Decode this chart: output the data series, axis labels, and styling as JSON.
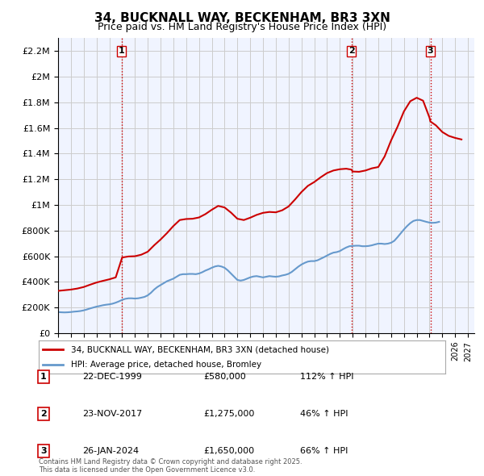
{
  "title": "34, BUCKNALL WAY, BECKENHAM, BR3 3XN",
  "subtitle": "Price paid vs. HM Land Registry's House Price Index (HPI)",
  "background_color": "#ffffff",
  "grid_color": "#cccccc",
  "plot_bg_color": "#f0f4ff",
  "ylim": [
    0,
    2300000
  ],
  "yticks": [
    0,
    200000,
    400000,
    600000,
    800000,
    1000000,
    1200000,
    1400000,
    1600000,
    1800000,
    2000000,
    2200000
  ],
  "ytick_labels": [
    "£0",
    "£200K",
    "£400K",
    "£600K",
    "£800K",
    "£1M",
    "£1.2M",
    "£1.4M",
    "£1.6M",
    "£1.8M",
    "£2M",
    "£2.2M"
  ],
  "xlim_start": 1995.0,
  "xlim_end": 2027.5,
  "sale_line_color": "#cc0000",
  "hpi_line_color": "#6699cc",
  "sale_marker_color": "#cc0000",
  "vline_color": "#cc0000",
  "vline_style": ":",
  "transactions": [
    {
      "date_num": 1999.97,
      "price": 580000,
      "label": "1"
    },
    {
      "date_num": 2017.9,
      "price": 1275000,
      "label": "2"
    },
    {
      "date_num": 2024.07,
      "price": 1650000,
      "label": "3"
    }
  ],
  "legend_sale_label": "34, BUCKNALL WAY, BECKENHAM, BR3 3XN (detached house)",
  "legend_hpi_label": "HPI: Average price, detached house, Bromley",
  "table_rows": [
    {
      "num": "1",
      "date": "22-DEC-1999",
      "price": "£580,000",
      "pct": "112% ↑ HPI"
    },
    {
      "num": "2",
      "date": "23-NOV-2017",
      "price": "£1,275,000",
      "pct": "46% ↑ HPI"
    },
    {
      "num": "3",
      "date": "26-JAN-2024",
      "price": "£1,650,000",
      "pct": "66% ↑ HPI"
    }
  ],
  "footer": "Contains HM Land Registry data © Crown copyright and database right 2025.\nThis data is licensed under the Open Government Licence v3.0.",
  "hpi_data": {
    "years": [
      1995,
      1995.25,
      1995.5,
      1995.75,
      1996,
      1996.25,
      1996.5,
      1996.75,
      1997,
      1997.25,
      1997.5,
      1997.75,
      1998,
      1998.25,
      1998.5,
      1998.75,
      1999,
      1999.25,
      1999.5,
      1999.75,
      2000,
      2000.25,
      2000.5,
      2000.75,
      2001,
      2001.25,
      2001.5,
      2001.75,
      2002,
      2002.25,
      2002.5,
      2002.75,
      2003,
      2003.25,
      2003.5,
      2003.75,
      2004,
      2004.25,
      2004.5,
      2004.75,
      2005,
      2005.25,
      2005.5,
      2005.75,
      2006,
      2006.25,
      2006.5,
      2006.75,
      2007,
      2007.25,
      2007.5,
      2007.75,
      2008,
      2008.25,
      2008.5,
      2008.75,
      2009,
      2009.25,
      2009.5,
      2009.75,
      2010,
      2010.25,
      2010.5,
      2010.75,
      2011,
      2011.25,
      2011.5,
      2011.75,
      2012,
      2012.25,
      2012.5,
      2012.75,
      2013,
      2013.25,
      2013.5,
      2013.75,
      2014,
      2014.25,
      2014.5,
      2014.75,
      2015,
      2015.25,
      2015.5,
      2015.75,
      2016,
      2016.25,
      2016.5,
      2016.75,
      2017,
      2017.25,
      2017.5,
      2017.75,
      2018,
      2018.25,
      2018.5,
      2018.75,
      2019,
      2019.25,
      2019.5,
      2019.75,
      2020,
      2020.25,
      2020.5,
      2020.75,
      2021,
      2021.25,
      2021.5,
      2021.75,
      2022,
      2022.25,
      2022.5,
      2022.75,
      2023,
      2023.25,
      2023.5,
      2023.75,
      2024,
      2024.25,
      2024.5,
      2024.75
    ],
    "values": [
      165000,
      163000,
      162000,
      163000,
      165000,
      168000,
      170000,
      173000,
      178000,
      185000,
      193000,
      200000,
      207000,
      212000,
      218000,
      222000,
      225000,
      230000,
      238000,
      248000,
      260000,
      268000,
      272000,
      272000,
      270000,
      272000,
      277000,
      283000,
      295000,
      315000,
      340000,
      360000,
      375000,
      390000,
      405000,
      415000,
      425000,
      440000,
      455000,
      460000,
      460000,
      462000,
      462000,
      460000,
      465000,
      475000,
      488000,
      498000,
      510000,
      520000,
      525000,
      520000,
      510000,
      490000,
      465000,
      440000,
      415000,
      410000,
      415000,
      425000,
      435000,
      442000,
      445000,
      440000,
      435000,
      440000,
      445000,
      442000,
      440000,
      443000,
      450000,
      455000,
      463000,
      478000,
      498000,
      518000,
      535000,
      548000,
      558000,
      562000,
      562000,
      568000,
      580000,
      592000,
      605000,
      618000,
      628000,
      632000,
      640000,
      655000,
      668000,
      678000,
      680000,
      682000,
      682000,
      678000,
      678000,
      680000,
      685000,
      692000,
      698000,
      698000,
      695000,
      698000,
      705000,
      720000,
      748000,
      778000,
      808000,
      835000,
      858000,
      875000,
      882000,
      882000,
      875000,
      868000,
      862000,
      860000,
      862000,
      868000
    ]
  },
  "sale_data": {
    "years": [
      1995.0,
      1995.5,
      1996.0,
      1996.5,
      1997.0,
      1997.5,
      1998.0,
      1998.5,
      1999.0,
      1999.5,
      1999.97,
      2000.0,
      2000.5,
      2001.0,
      2001.5,
      2002.0,
      2002.5,
      2003.0,
      2003.5,
      2004.0,
      2004.5,
      2005.0,
      2005.5,
      2006.0,
      2006.5,
      2007.0,
      2007.5,
      2008.0,
      2008.5,
      2009.0,
      2009.5,
      2010.0,
      2010.5,
      2011.0,
      2011.5,
      2012.0,
      2012.5,
      2013.0,
      2013.5,
      2014.0,
      2014.5,
      2015.0,
      2015.5,
      2016.0,
      2016.5,
      2017.0,
      2017.5,
      2017.9,
      2018.0,
      2018.5,
      2019.0,
      2019.5,
      2020.0,
      2020.5,
      2021.0,
      2021.5,
      2022.0,
      2022.5,
      2023.0,
      2023.5,
      2024.0,
      2024.07,
      2024.5,
      2025.0,
      2025.5,
      2026.0,
      2026.5
    ],
    "values": [
      330000,
      335000,
      340000,
      348000,
      360000,
      378000,
      395000,
      408000,
      420000,
      435000,
      580000,
      590000,
      598000,
      600000,
      612000,
      635000,
      685000,
      730000,
      780000,
      835000,
      882000,
      890000,
      892000,
      902000,
      928000,
      962000,
      992000,
      980000,
      940000,
      892000,
      882000,
      900000,
      922000,
      938000,
      945000,
      942000,
      958000,
      988000,
      1042000,
      1100000,
      1148000,
      1178000,
      1215000,
      1248000,
      1268000,
      1278000,
      1282000,
      1275000,
      1260000,
      1258000,
      1268000,
      1285000,
      1295000,
      1378000,
      1502000,
      1608000,
      1728000,
      1808000,
      1835000,
      1812000,
      1680000,
      1650000,
      1620000,
      1568000,
      1538000,
      1522000,
      1510000
    ]
  }
}
